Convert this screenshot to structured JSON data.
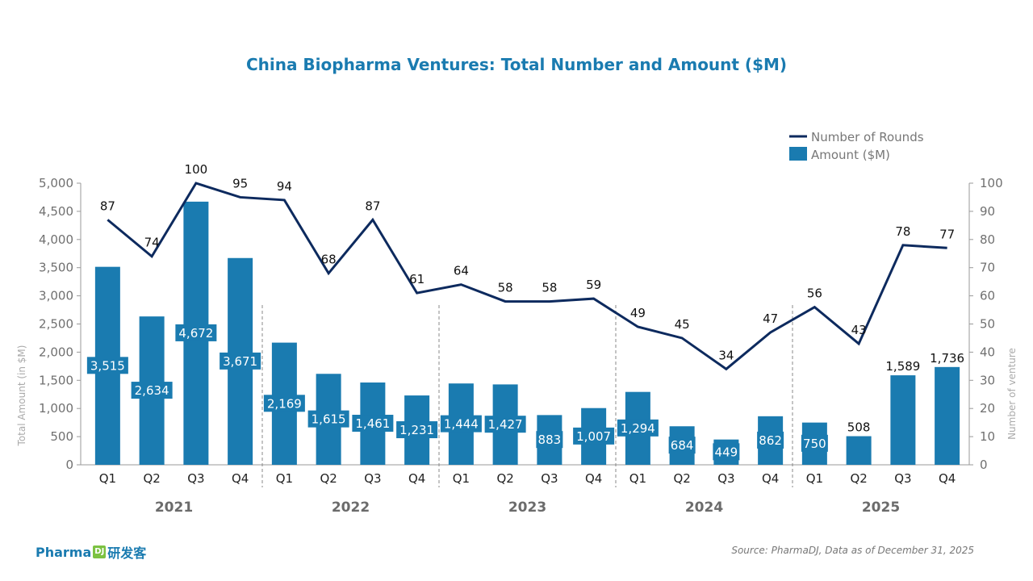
{
  "chart_data": {
    "type": "bar+line",
    "title": "China Biopharma Ventures: Total Number and Amount ($M)",
    "ylabel": "Total Amount (in $M)",
    "y2label": "Number of venture",
    "ylim": [
      0,
      5000
    ],
    "yticks": [
      "0",
      "500",
      "1,000",
      "1,500",
      "2,000",
      "2,500",
      "3,000",
      "3,500",
      "4,000",
      "4,500",
      "5,000"
    ],
    "y2lim": [
      0,
      100
    ],
    "y2ticks": [
      "0",
      "10",
      "20",
      "30",
      "40",
      "50",
      "60",
      "70",
      "80",
      "90",
      "100"
    ],
    "years": [
      "2021",
      "2022",
      "2023",
      "2024",
      "2025"
    ],
    "categories": [
      "Q1",
      "Q2",
      "Q3",
      "Q4",
      "Q1",
      "Q2",
      "Q3",
      "Q4",
      "Q1",
      "Q2",
      "Q3",
      "Q4",
      "Q1",
      "Q2",
      "Q3",
      "Q4",
      "Q1",
      "Q2",
      "Q3",
      "Q4"
    ],
    "series": [
      {
        "name": "Amount ($M)",
        "type": "bar",
        "color": "#1a7bb0",
        "values": [
          3515,
          2634,
          4672,
          3671,
          2169,
          1615,
          1461,
          1231,
          1444,
          1427,
          883,
          1007,
          1294,
          684,
          449,
          862,
          750,
          508,
          1589,
          1736
        ],
        "labels": [
          "3,515",
          "2,634",
          "4,672",
          "3,671",
          "2,169",
          "1,615",
          "1,461",
          "1,231",
          "1,444",
          "1,427",
          "883",
          "1,007",
          "1,294",
          "684",
          "449",
          "862",
          "750",
          "508",
          "1,589",
          "1,736"
        ]
      },
      {
        "name": "Number of Rounds",
        "type": "line",
        "color": "#0d2a5e",
        "values": [
          87,
          74,
          100,
          95,
          94,
          68,
          87,
          61,
          64,
          58,
          58,
          59,
          49,
          45,
          34,
          47,
          56,
          43,
          78,
          77
        ]
      }
    ],
    "legend": "top-right",
    "grid": false
  },
  "source": "Source: PharmaDJ, Data as of December 31, 2025",
  "logo": {
    "text": "Pharma",
    "mark": "DJ",
    "cn": "研发客"
  }
}
